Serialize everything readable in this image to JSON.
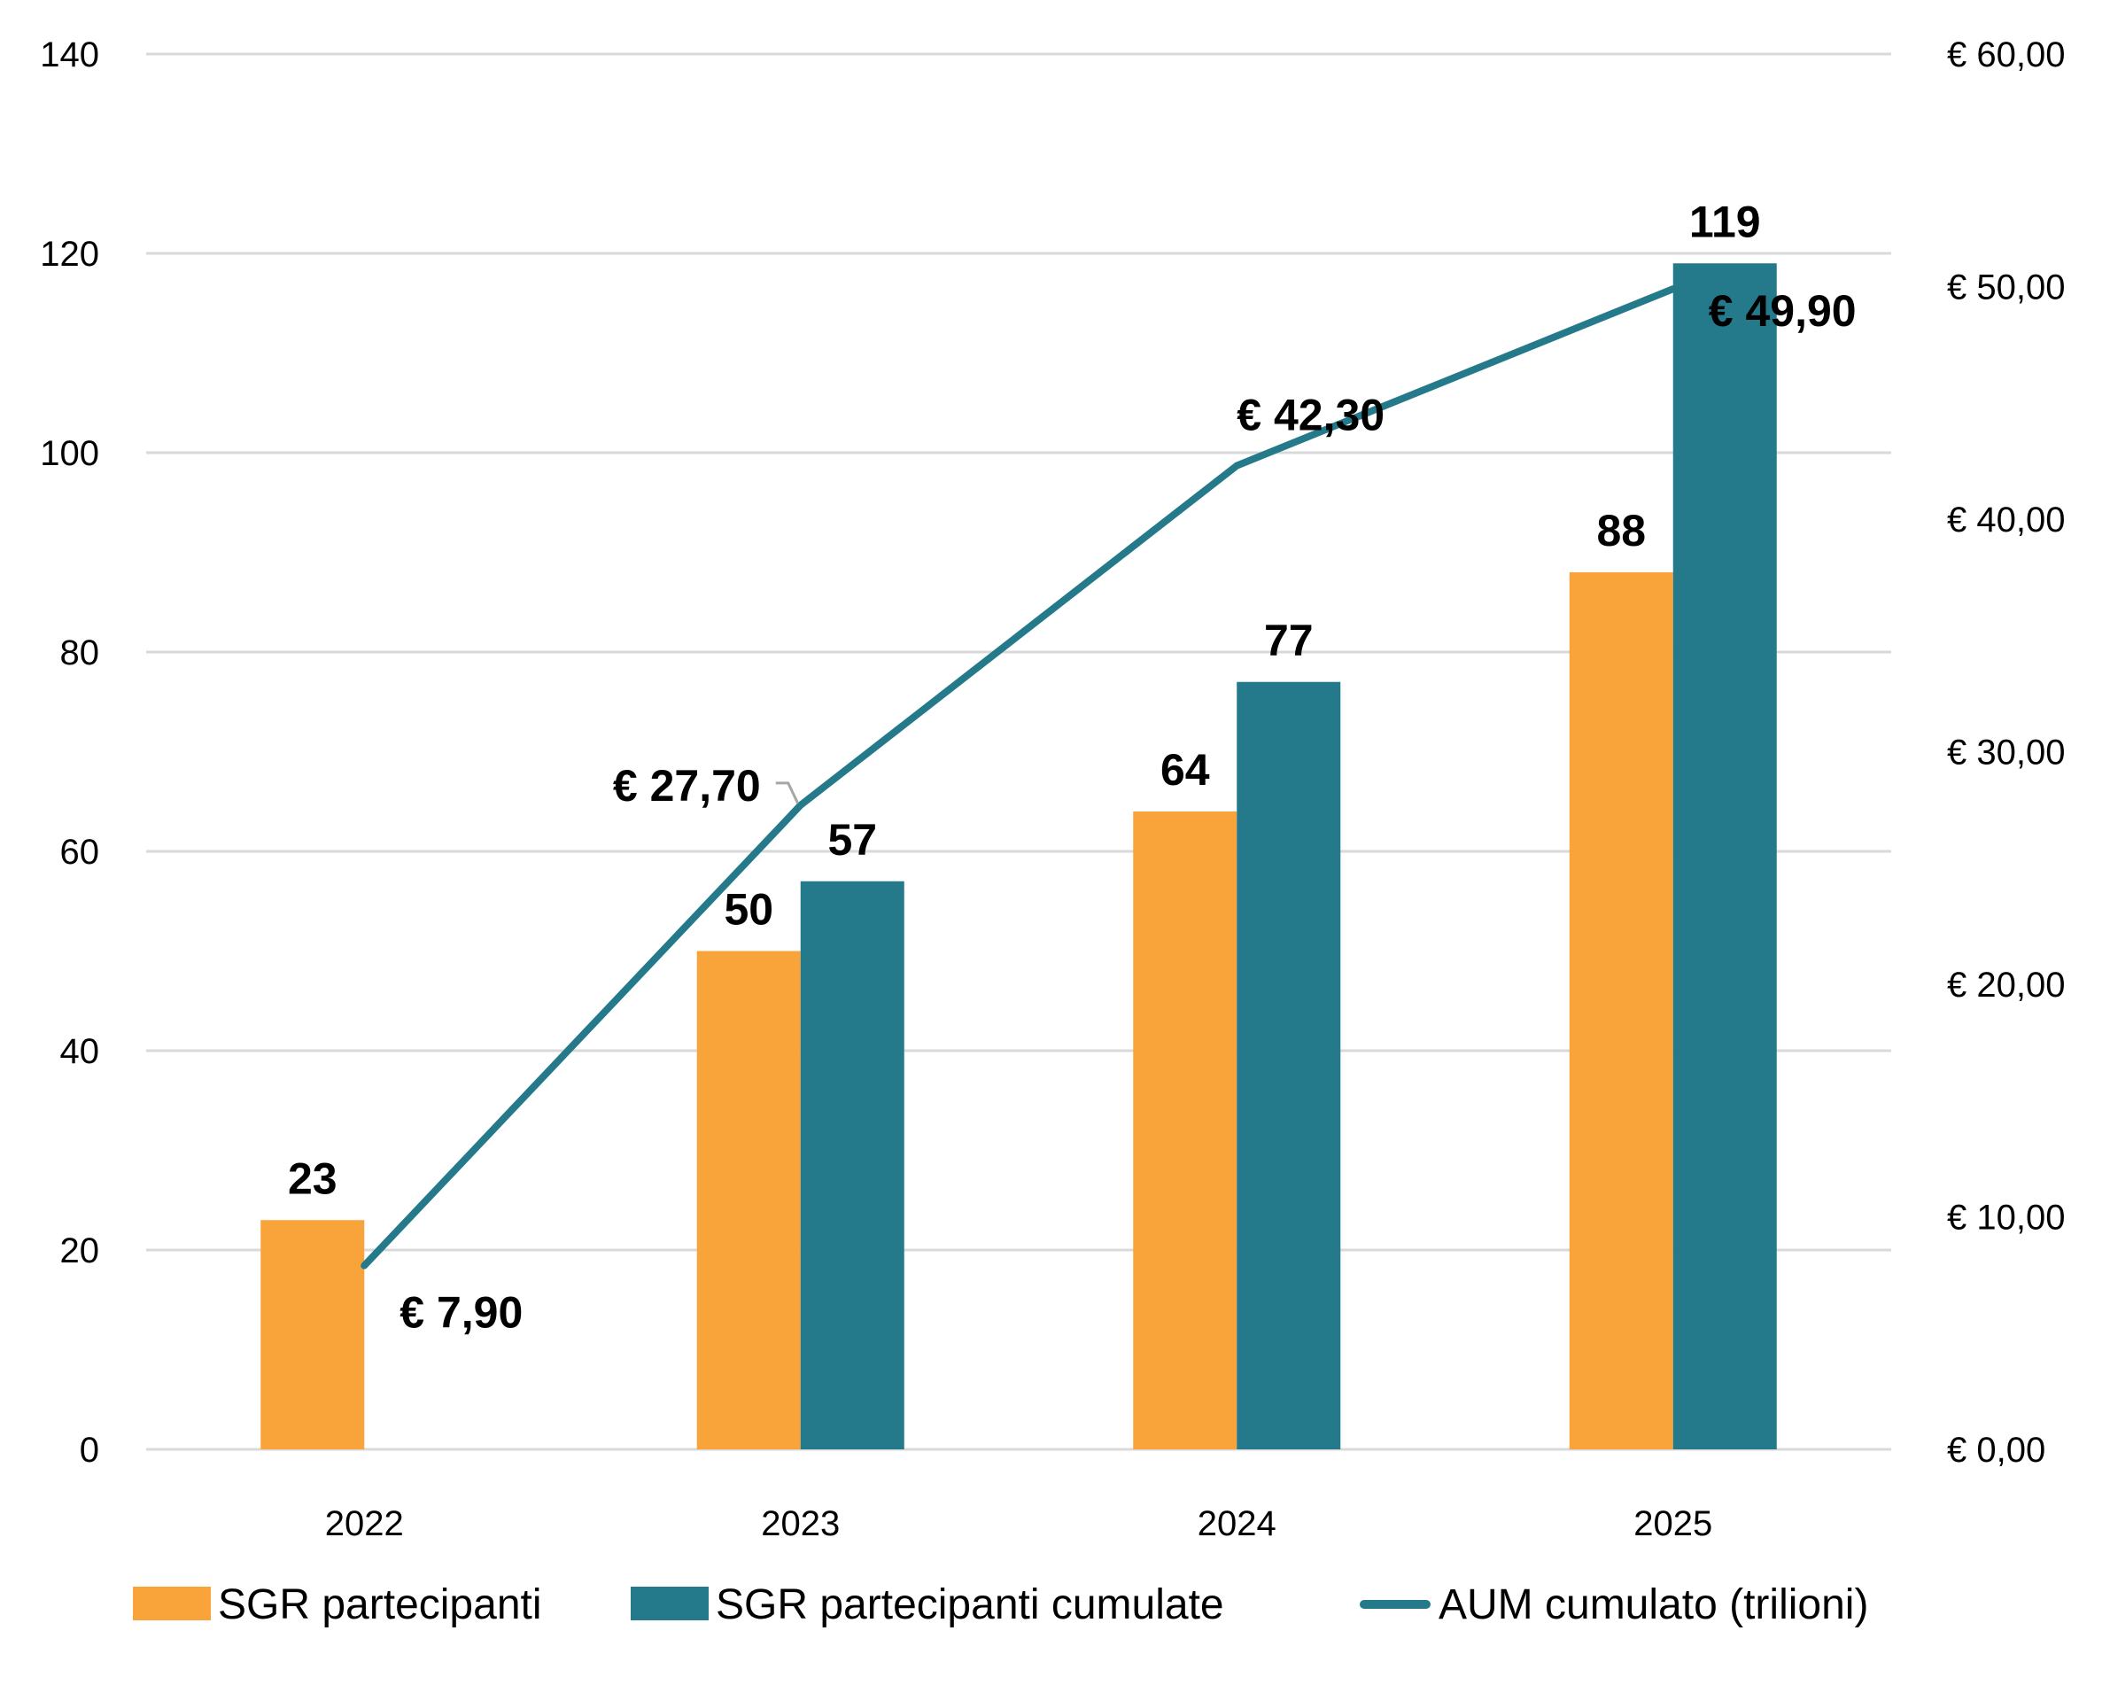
{
  "chart_data": {
    "type": "bar",
    "title": "",
    "xlabel": "",
    "ylabel": "",
    "categories": [
      "2022",
      "2023",
      "2024",
      "2025"
    ],
    "series": [
      {
        "name": "SGR partecipanti",
        "type": "bar",
        "axis": "left",
        "color": "#F9A43A",
        "values": [
          23,
          50,
          64,
          88
        ],
        "labels": [
          "23",
          "50",
          "64",
          "88"
        ]
      },
      {
        "name": "SGR partecipanti cumulate",
        "type": "bar",
        "axis": "left",
        "color": "#24798B",
        "values": [
          null,
          57,
          77,
          119
        ],
        "labels": [
          "",
          "57",
          "77",
          "119"
        ]
      },
      {
        "name": "AUM cumulato (trilioni)",
        "type": "line",
        "axis": "right",
        "color": "#24798B",
        "values": [
          7.9,
          27.7,
          42.3,
          49.9
        ],
        "labels": [
          "€ 7,90",
          "€ 27,70",
          "€ 42,30",
          "€ 49,90"
        ]
      }
    ],
    "ylim": [
      0,
      140
    ],
    "y_ticks": [
      "0",
      "20",
      "40",
      "60",
      "80",
      "100",
      "120",
      "140"
    ],
    "y_tick_values": [
      0,
      20,
      40,
      60,
      80,
      100,
      120,
      140
    ],
    "y2lim": [
      0,
      60
    ],
    "y2_ticks": [
      "€ 0,00",
      "€ 10,00",
      "€ 20,00",
      "€ 30,00",
      "€ 40,00",
      "€ 50,00",
      "€ 60,00"
    ],
    "y2_tick_values": [
      0,
      10,
      20,
      30,
      40,
      50,
      60
    ],
    "grid": true,
    "legend_position": "bottom",
    "legend": [
      "SGR partecipanti",
      "SGR partecipanti cumulate",
      "AUM cumulato (trilioni)"
    ]
  }
}
